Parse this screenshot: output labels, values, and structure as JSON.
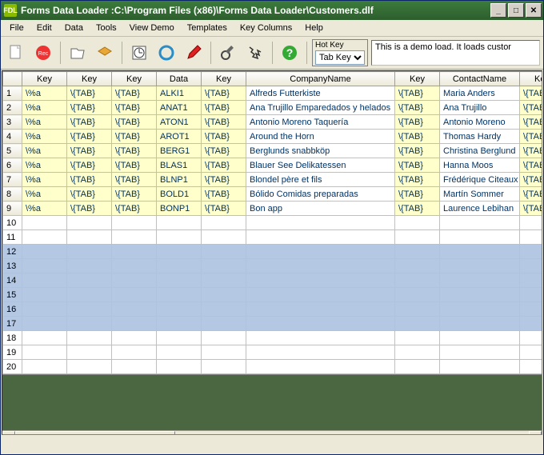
{
  "window": {
    "title": "Forms Data Loader :C:\\Program Files (x86)\\Forms Data Loader\\Customers.dlf"
  },
  "menu": [
    "File",
    "Edit",
    "Data",
    "Tools",
    "View Demo",
    "Templates",
    "Key Columns",
    "Help"
  ],
  "hotkey": {
    "label": "Hot Key",
    "value": "Tab Key"
  },
  "status": "This is a demo load. It loads custor",
  "columns": [
    {
      "type": "corner",
      "label": ""
    },
    {
      "type": "key",
      "label": "Key"
    },
    {
      "type": "key",
      "label": "Key"
    },
    {
      "type": "key",
      "label": "Key"
    },
    {
      "type": "data",
      "label": "Data"
    },
    {
      "type": "key",
      "label": "Key"
    },
    {
      "type": "company",
      "label": "CompanyName"
    },
    {
      "type": "key",
      "label": "Key"
    },
    {
      "type": "contact",
      "label": "ContactName"
    },
    {
      "type": "key",
      "label": "Key"
    }
  ],
  "key_token": "\\{TAB}",
  "pct_token": "\\%a",
  "rows": [
    {
      "n": 1,
      "data": "ALKI1",
      "company": "Alfreds Futterkiste",
      "contact": "Maria Anders"
    },
    {
      "n": 2,
      "data": "ANAT1",
      "company": "Ana Trujillo Emparedados y helados",
      "contact": "Ana Trujillo"
    },
    {
      "n": 3,
      "data": "ATON1",
      "company": "Antonio Moreno Taquería",
      "contact": "Antonio Moreno"
    },
    {
      "n": 4,
      "data": "AROT1",
      "company": "Around the Horn",
      "contact": "Thomas Hardy"
    },
    {
      "n": 5,
      "data": "BERG1",
      "company": "Berglunds snabbköp",
      "contact": "Christina Berglund"
    },
    {
      "n": 6,
      "data": "BLAS1",
      "company": "Blauer See Delikatessen",
      "contact": "Hanna Moos"
    },
    {
      "n": 7,
      "data": "BLNP1",
      "company": "Blondel père et fils",
      "contact": "Frédérique Citeaux"
    },
    {
      "n": 8,
      "data": "BOLD1",
      "company": "Bólido Comidas preparadas",
      "contact": "Martín Sommer"
    },
    {
      "n": 9,
      "data": "BONP1",
      "company": "Bon app",
      "contact": "Laurence Lebihan"
    }
  ],
  "empty_rows": [
    10,
    11
  ],
  "selected_rows": [
    12,
    13,
    14,
    15,
    16,
    17
  ],
  "trailing_rows": [
    18,
    19,
    20
  ],
  "colors": {
    "key_bg": "#ffffcc",
    "sel_bg": "#b4c8e4",
    "bottom_bg": "#4a6741",
    "text_data": "#003366"
  }
}
